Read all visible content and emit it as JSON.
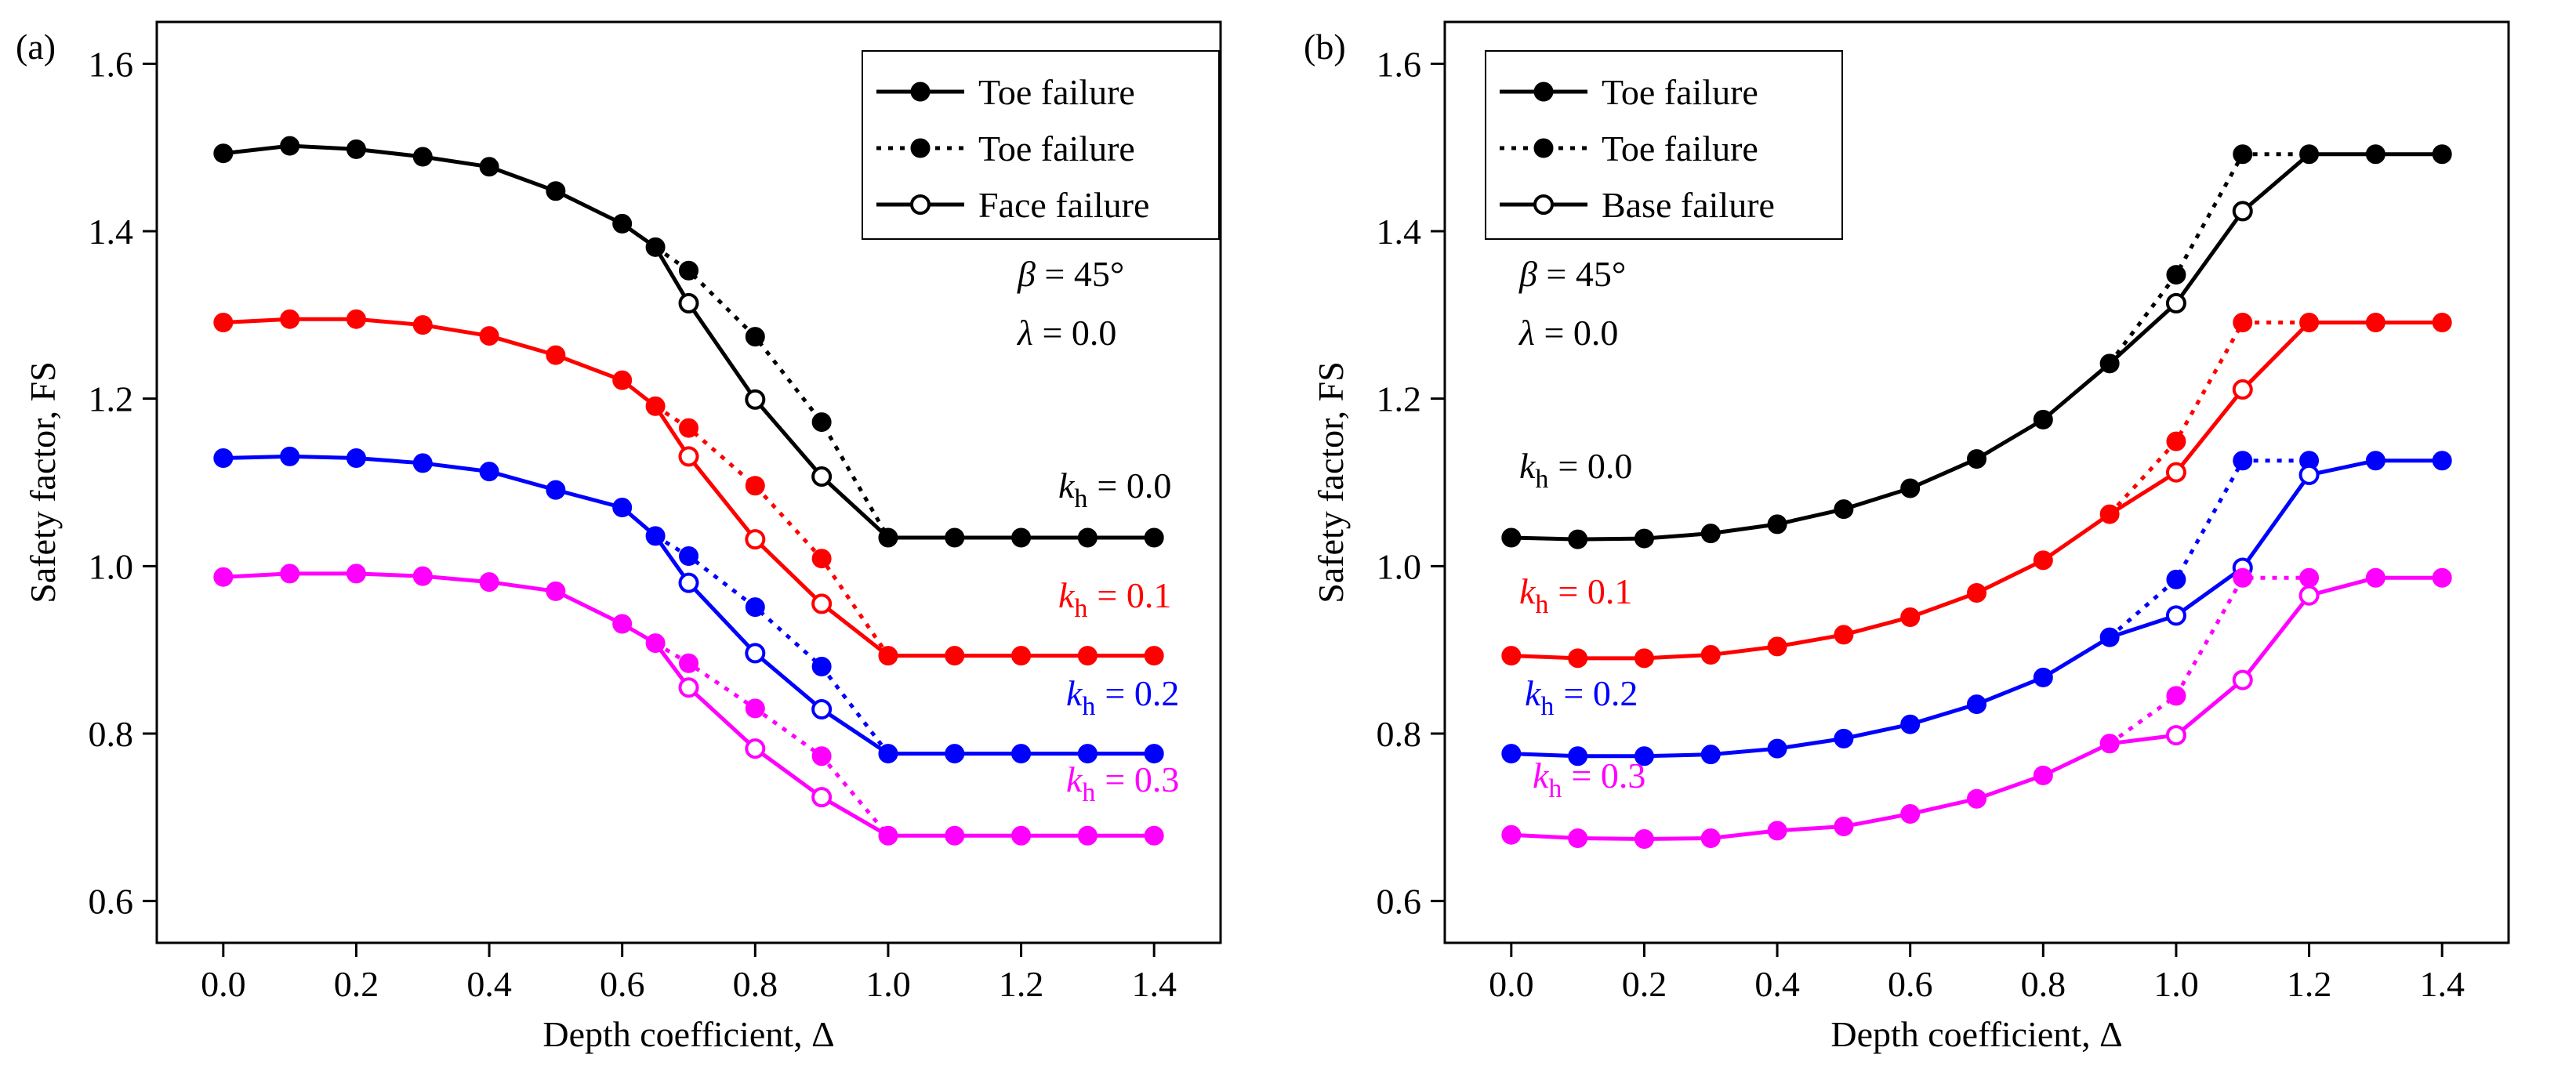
{
  "figure": {
    "xlabel_text": "Depth coefficient, Δ",
    "ylabel_text": "Safety factor, FS"
  },
  "chart_data": [
    {
      "type": "line",
      "panel_label": "(a)",
      "xlabel": "Depth coefficient, Δ",
      "ylabel": "Safety factor, FS",
      "xlim": [
        -0.1,
        1.5
      ],
      "ylim": [
        0.55,
        1.65
      ],
      "xticks": [
        0.0,
        0.2,
        0.4,
        0.6,
        0.8,
        1.0,
        1.2,
        1.4
      ],
      "xtick_labels": [
        "0.0",
        "0.2",
        "0.4",
        "0.6",
        "0.8",
        "1.0",
        "1.2",
        "1.4"
      ],
      "yticks": [
        0.6,
        0.8,
        1.0,
        1.2,
        1.4,
        1.6
      ],
      "ytick_labels": [
        "0.6",
        "0.8",
        "1.0",
        "1.2",
        "1.4",
        "1.6"
      ],
      "annotations": {
        "beta": "β = 45°",
        "lambda": "λ = 0.0"
      },
      "legend": {
        "position": "top-right",
        "entries": [
          {
            "label": "Toe failure",
            "line": "solid",
            "marker": "filled"
          },
          {
            "label": "Toe failure",
            "line": "dotted",
            "marker": "filled"
          },
          {
            "label": "Face failure",
            "line": "solid",
            "marker": "open"
          }
        ]
      },
      "groups": [
        {
          "label_k": "k",
          "label_sub": "h",
          "label_value": "= 0.0",
          "color": "#000000",
          "solid": [
            {
              "x": 0.0,
              "y": 1.493,
              "m": "f"
            },
            {
              "x": 0.1,
              "y": 1.502,
              "m": "f"
            },
            {
              "x": 0.2,
              "y": 1.498,
              "m": "f"
            },
            {
              "x": 0.3,
              "y": 1.489,
              "m": "f"
            },
            {
              "x": 0.4,
              "y": 1.477,
              "m": "f"
            },
            {
              "x": 0.5,
              "y": 1.448,
              "m": "f"
            },
            {
              "x": 0.6,
              "y": 1.409,
              "m": "f"
            },
            {
              "x": 0.65,
              "y": 1.381,
              "m": "f"
            },
            {
              "x": 0.7,
              "y": 1.314,
              "m": "o"
            },
            {
              "x": 0.8,
              "y": 1.199,
              "m": "o"
            },
            {
              "x": 0.9,
              "y": 1.107,
              "m": "o"
            },
            {
              "x": 1.0,
              "y": 1.034,
              "m": "f"
            },
            {
              "x": 1.1,
              "y": 1.034,
              "m": "f"
            },
            {
              "x": 1.2,
              "y": 1.034,
              "m": "f"
            },
            {
              "x": 1.3,
              "y": 1.034,
              "m": "f"
            },
            {
              "x": 1.4,
              "y": 1.034,
              "m": "f"
            }
          ],
          "dotted": [
            {
              "x": 0.65,
              "y": 1.381
            },
            {
              "x": 0.7,
              "y": 1.353
            },
            {
              "x": 0.8,
              "y": 1.274
            },
            {
              "x": 0.9,
              "y": 1.172
            },
            {
              "x": 1.0,
              "y": 1.034
            }
          ]
        },
        {
          "label_k": "k",
          "label_sub": "h",
          "label_value": "= 0.1",
          "color": "#ff0000",
          "solid": [
            {
              "x": 0.0,
              "y": 1.291,
              "m": "f"
            },
            {
              "x": 0.1,
              "y": 1.295,
              "m": "f"
            },
            {
              "x": 0.2,
              "y": 1.295,
              "m": "f"
            },
            {
              "x": 0.3,
              "y": 1.288,
              "m": "f"
            },
            {
              "x": 0.4,
              "y": 1.275,
              "m": "f"
            },
            {
              "x": 0.5,
              "y": 1.252,
              "m": "f"
            },
            {
              "x": 0.6,
              "y": 1.222,
              "m": "f"
            },
            {
              "x": 0.65,
              "y": 1.191,
              "m": "f"
            },
            {
              "x": 0.7,
              "y": 1.131,
              "m": "o"
            },
            {
              "x": 0.8,
              "y": 1.032,
              "m": "o"
            },
            {
              "x": 0.9,
              "y": 0.955,
              "m": "o"
            },
            {
              "x": 1.0,
              "y": 0.893,
              "m": "f"
            },
            {
              "x": 1.1,
              "y": 0.893,
              "m": "f"
            },
            {
              "x": 1.2,
              "y": 0.893,
              "m": "f"
            },
            {
              "x": 1.3,
              "y": 0.893,
              "m": "f"
            },
            {
              "x": 1.4,
              "y": 0.893,
              "m": "f"
            }
          ],
          "dotted": [
            {
              "x": 0.65,
              "y": 1.191
            },
            {
              "x": 0.7,
              "y": 1.165
            },
            {
              "x": 0.8,
              "y": 1.096
            },
            {
              "x": 0.9,
              "y": 1.009
            },
            {
              "x": 1.0,
              "y": 0.893
            }
          ]
        },
        {
          "label_k": "k",
          "label_sub": "h",
          "label_value": "= 0.2",
          "color": "#0000ff",
          "solid": [
            {
              "x": 0.0,
              "y": 1.129,
              "m": "f"
            },
            {
              "x": 0.1,
              "y": 1.131,
              "m": "f"
            },
            {
              "x": 0.2,
              "y": 1.129,
              "m": "f"
            },
            {
              "x": 0.3,
              "y": 1.123,
              "m": "f"
            },
            {
              "x": 0.4,
              "y": 1.113,
              "m": "f"
            },
            {
              "x": 0.5,
              "y": 1.091,
              "m": "f"
            },
            {
              "x": 0.6,
              "y": 1.07,
              "m": "f"
            },
            {
              "x": 0.65,
              "y": 1.036,
              "m": "f"
            },
            {
              "x": 0.7,
              "y": 0.98,
              "m": "o"
            },
            {
              "x": 0.8,
              "y": 0.896,
              "m": "o"
            },
            {
              "x": 0.9,
              "y": 0.829,
              "m": "o"
            },
            {
              "x": 1.0,
              "y": 0.776,
              "m": "f"
            },
            {
              "x": 1.1,
              "y": 0.776,
              "m": "f"
            },
            {
              "x": 1.2,
              "y": 0.776,
              "m": "f"
            },
            {
              "x": 1.3,
              "y": 0.776,
              "m": "f"
            },
            {
              "x": 1.4,
              "y": 0.776,
              "m": "f"
            }
          ],
          "dotted": [
            {
              "x": 0.65,
              "y": 1.036
            },
            {
              "x": 0.7,
              "y": 1.012
            },
            {
              "x": 0.8,
              "y": 0.951
            },
            {
              "x": 0.9,
              "y": 0.88
            },
            {
              "x": 1.0,
              "y": 0.776
            }
          ]
        },
        {
          "label_k": "k",
          "label_sub": "h",
          "label_value": "= 0.3",
          "color": "#ff00ff",
          "solid": [
            {
              "x": 0.0,
              "y": 0.987,
              "m": "f"
            },
            {
              "x": 0.1,
              "y": 0.991,
              "m": "f"
            },
            {
              "x": 0.2,
              "y": 0.991,
              "m": "f"
            },
            {
              "x": 0.3,
              "y": 0.988,
              "m": "f"
            },
            {
              "x": 0.4,
              "y": 0.981,
              "m": "f"
            },
            {
              "x": 0.5,
              "y": 0.97,
              "m": "f"
            },
            {
              "x": 0.6,
              "y": 0.931,
              "m": "f"
            },
            {
              "x": 0.65,
              "y": 0.908,
              "m": "f"
            },
            {
              "x": 0.7,
              "y": 0.855,
              "m": "o"
            },
            {
              "x": 0.8,
              "y": 0.782,
              "m": "o"
            },
            {
              "x": 0.9,
              "y": 0.724,
              "m": "o"
            },
            {
              "x": 1.0,
              "y": 0.678,
              "m": "f"
            },
            {
              "x": 1.1,
              "y": 0.678,
              "m": "f"
            },
            {
              "x": 1.2,
              "y": 0.678,
              "m": "f"
            },
            {
              "x": 1.3,
              "y": 0.678,
              "m": "f"
            },
            {
              "x": 1.4,
              "y": 0.678,
              "m": "f"
            }
          ],
          "dotted": [
            {
              "x": 0.65,
              "y": 0.908
            },
            {
              "x": 0.7,
              "y": 0.884
            },
            {
              "x": 0.8,
              "y": 0.83
            },
            {
              "x": 0.9,
              "y": 0.773
            },
            {
              "x": 1.0,
              "y": 0.678
            }
          ]
        }
      ]
    },
    {
      "type": "line",
      "panel_label": "(b)",
      "xlabel": "Depth coefficient, Δ",
      "ylabel": "Safety factor, FS",
      "xlim": [
        -0.1,
        1.5
      ],
      "ylim": [
        0.55,
        1.65
      ],
      "xticks": [
        0.0,
        0.2,
        0.4,
        0.6,
        0.8,
        1.0,
        1.2,
        1.4
      ],
      "xtick_labels": [
        "0.0",
        "0.2",
        "0.4",
        "0.6",
        "0.8",
        "1.0",
        "1.2",
        "1.4"
      ],
      "yticks": [
        0.6,
        0.8,
        1.0,
        1.2,
        1.4,
        1.6
      ],
      "ytick_labels": [
        "0.6",
        "0.8",
        "1.0",
        "1.2",
        "1.4",
        "1.6"
      ],
      "annotations": {
        "beta": "β = 45°",
        "lambda": "λ = 0.0"
      },
      "legend": {
        "position": "top-left",
        "entries": [
          {
            "label": "Toe failure",
            "line": "solid",
            "marker": "filled"
          },
          {
            "label": "Toe failure",
            "line": "dotted",
            "marker": "filled"
          },
          {
            "label": "Base failure",
            "line": "solid",
            "marker": "open"
          }
        ]
      },
      "groups": [
        {
          "label_k": "k",
          "label_sub": "h",
          "label_value": "= 0.0",
          "color": "#000000",
          "solid": [
            {
              "x": 0.0,
              "y": 1.034,
              "m": "f"
            },
            {
              "x": 0.1,
              "y": 1.032,
              "m": "f"
            },
            {
              "x": 0.2,
              "y": 1.033,
              "m": "f"
            },
            {
              "x": 0.3,
              "y": 1.039,
              "m": "f"
            },
            {
              "x": 0.4,
              "y": 1.05,
              "m": "f"
            },
            {
              "x": 0.5,
              "y": 1.068,
              "m": "f"
            },
            {
              "x": 0.6,
              "y": 1.093,
              "m": "f"
            },
            {
              "x": 0.7,
              "y": 1.128,
              "m": "f"
            },
            {
              "x": 0.8,
              "y": 1.175,
              "m": "f"
            },
            {
              "x": 0.9,
              "y": 1.242,
              "m": "f"
            },
            {
              "x": 1.0,
              "y": 1.314,
              "m": "o"
            },
            {
              "x": 1.1,
              "y": 1.424,
              "m": "o"
            },
            {
              "x": 1.2,
              "y": 1.492,
              "m": "f"
            },
            {
              "x": 1.3,
              "y": 1.492,
              "m": "f"
            },
            {
              "x": 1.4,
              "y": 1.492,
              "m": "f"
            }
          ],
          "dotted": [
            {
              "x": 0.9,
              "y": 1.242
            },
            {
              "x": 1.0,
              "y": 1.348
            },
            {
              "x": 1.1,
              "y": 1.492
            },
            {
              "x": 1.2,
              "y": 1.492
            }
          ]
        },
        {
          "label_k": "k",
          "label_sub": "h",
          "label_value": "= 0.1",
          "color": "#ff0000",
          "solid": [
            {
              "x": 0.0,
              "y": 0.893,
              "m": "f"
            },
            {
              "x": 0.1,
              "y": 0.89,
              "m": "f"
            },
            {
              "x": 0.2,
              "y": 0.89,
              "m": "f"
            },
            {
              "x": 0.3,
              "y": 0.894,
              "m": "f"
            },
            {
              "x": 0.4,
              "y": 0.904,
              "m": "f"
            },
            {
              "x": 0.5,
              "y": 0.918,
              "m": "f"
            },
            {
              "x": 0.6,
              "y": 0.939,
              "m": "f"
            },
            {
              "x": 0.7,
              "y": 0.968,
              "m": "f"
            },
            {
              "x": 0.8,
              "y": 1.007,
              "m": "f"
            },
            {
              "x": 0.9,
              "y": 1.062,
              "m": "f"
            },
            {
              "x": 1.0,
              "y": 1.112,
              "m": "o"
            },
            {
              "x": 1.1,
              "y": 1.211,
              "m": "o"
            },
            {
              "x": 1.2,
              "y": 1.291,
              "m": "f"
            },
            {
              "x": 1.3,
              "y": 1.291,
              "m": "f"
            },
            {
              "x": 1.4,
              "y": 1.291,
              "m": "f"
            }
          ],
          "dotted": [
            {
              "x": 0.9,
              "y": 1.062
            },
            {
              "x": 1.0,
              "y": 1.149
            },
            {
              "x": 1.1,
              "y": 1.291
            },
            {
              "x": 1.2,
              "y": 1.291
            }
          ]
        },
        {
          "label_k": "k",
          "label_sub": "h",
          "label_value": "= 0.2",
          "color": "#0000ff",
          "solid": [
            {
              "x": 0.0,
              "y": 0.776,
              "m": "f"
            },
            {
              "x": 0.1,
              "y": 0.773,
              "m": "f"
            },
            {
              "x": 0.2,
              "y": 0.773,
              "m": "f"
            },
            {
              "x": 0.3,
              "y": 0.775,
              "m": "f"
            },
            {
              "x": 0.4,
              "y": 0.782,
              "m": "f"
            },
            {
              "x": 0.5,
              "y": 0.794,
              "m": "f"
            },
            {
              "x": 0.6,
              "y": 0.811,
              "m": "f"
            },
            {
              "x": 0.7,
              "y": 0.835,
              "m": "f"
            },
            {
              "x": 0.8,
              "y": 0.867,
              "m": "f"
            },
            {
              "x": 0.9,
              "y": 0.915,
              "m": "f"
            },
            {
              "x": 1.0,
              "y": 0.941,
              "m": "o"
            },
            {
              "x": 1.1,
              "y": 0.998,
              "m": "o"
            },
            {
              "x": 1.2,
              "y": 1.109,
              "m": "o"
            },
            {
              "x": 1.3,
              "y": 1.126,
              "m": "f"
            },
            {
              "x": 1.4,
              "y": 1.126,
              "m": "f"
            }
          ],
          "dotted": [
            {
              "x": 0.9,
              "y": 0.915
            },
            {
              "x": 1.0,
              "y": 0.984
            },
            {
              "x": 1.1,
              "y": 1.126
            },
            {
              "x": 1.2,
              "y": 1.126
            }
          ]
        },
        {
          "label_k": "k",
          "label_sub": "h",
          "label_value": "= 0.3",
          "color": "#ff00ff",
          "solid": [
            {
              "x": 0.0,
              "y": 0.679,
              "m": "f"
            },
            {
              "x": 0.1,
              "y": 0.675,
              "m": "f"
            },
            {
              "x": 0.2,
              "y": 0.674,
              "m": "f"
            },
            {
              "x": 0.3,
              "y": 0.675,
              "m": "f"
            },
            {
              "x": 0.4,
              "y": 0.684,
              "m": "f"
            },
            {
              "x": 0.5,
              "y": 0.689,
              "m": "f"
            },
            {
              "x": 0.6,
              "y": 0.704,
              "m": "f"
            },
            {
              "x": 0.7,
              "y": 0.722,
              "m": "f"
            },
            {
              "x": 0.8,
              "y": 0.75,
              "m": "f"
            },
            {
              "x": 0.9,
              "y": 0.788,
              "m": "f"
            },
            {
              "x": 1.0,
              "y": 0.798,
              "m": "o"
            },
            {
              "x": 1.1,
              "y": 0.864,
              "m": "o"
            },
            {
              "x": 1.2,
              "y": 0.965,
              "m": "o"
            },
            {
              "x": 1.3,
              "y": 0.986,
              "m": "f"
            },
            {
              "x": 1.4,
              "y": 0.986,
              "m": "f"
            }
          ],
          "dotted": [
            {
              "x": 0.9,
              "y": 0.788
            },
            {
              "x": 1.0,
              "y": 0.845
            },
            {
              "x": 1.1,
              "y": 0.986
            },
            {
              "x": 1.2,
              "y": 0.986
            }
          ]
        }
      ]
    }
  ]
}
